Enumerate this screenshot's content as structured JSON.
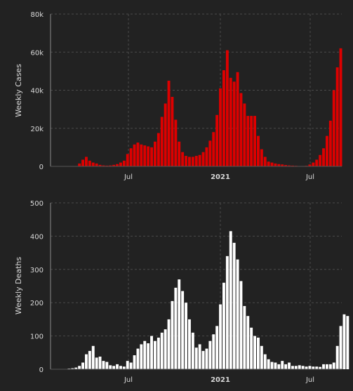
{
  "chart_data": [
    {
      "type": "bar",
      "ylabel": "Weekly Cases",
      "ylim": [
        0,
        80000
      ],
      "yticks": [
        0,
        20000,
        40000,
        60000,
        80000
      ],
      "ytick_labels": [
        "0",
        "20k",
        "40k",
        "60k",
        "80k"
      ],
      "xtick_labels": [
        "Jul",
        "2021",
        "Jul"
      ],
      "grid": true,
      "color": "#dd0000",
      "values": [
        0,
        0,
        0,
        0,
        0,
        0,
        0,
        200,
        1500,
        3500,
        5000,
        3000,
        2000,
        1500,
        800,
        500,
        400,
        500,
        800,
        1200,
        2000,
        3000,
        6500,
        9500,
        11500,
        12500,
        11500,
        11000,
        10500,
        10000,
        13000,
        17500,
        26000,
        33000,
        45000,
        36500,
        24500,
        13000,
        7500,
        5500,
        5000,
        5000,
        5500,
        6000,
        7500,
        10000,
        13500,
        18000,
        27000,
        41000,
        50500,
        61000,
        46500,
        44500,
        49500,
        38500,
        33000,
        26500,
        26500,
        26500,
        16000,
        9000,
        5000,
        2500,
        2000,
        1500,
        1200,
        1000,
        700,
        500,
        400,
        300,
        200,
        200,
        300,
        1000,
        2000,
        3500,
        6000,
        9500,
        16000,
        24000,
        40000,
        52000,
        62000
      ]
    },
    {
      "type": "bar",
      "ylabel": "Weekly Deaths",
      "ylim": [
        0,
        500
      ],
      "yticks": [
        0,
        100,
        200,
        300,
        400,
        500
      ],
      "ytick_labels": [
        "0",
        "100",
        "200",
        "300",
        "400",
        "500"
      ],
      "xtick_labels": [
        "Jul",
        "2021",
        "Jul"
      ],
      "grid": true,
      "color": "#ffffff",
      "values": [
        0,
        0,
        0,
        0,
        1,
        2,
        3,
        5,
        10,
        20,
        45,
        55,
        70,
        35,
        38,
        25,
        22,
        12,
        10,
        15,
        10,
        8,
        25,
        20,
        42,
        62,
        75,
        85,
        78,
        100,
        85,
        95,
        110,
        120,
        150,
        205,
        245,
        270,
        235,
        200,
        150,
        110,
        65,
        75,
        55,
        62,
        85,
        105,
        130,
        195,
        260,
        340,
        415,
        380,
        330,
        265,
        190,
        160,
        125,
        100,
        95,
        70,
        45,
        30,
        22,
        20,
        15,
        25,
        15,
        20,
        10,
        10,
        12,
        10,
        8,
        10,
        8,
        8,
        7,
        15,
        15,
        15,
        20,
        70,
        130,
        165,
        160
      ]
    }
  ]
}
